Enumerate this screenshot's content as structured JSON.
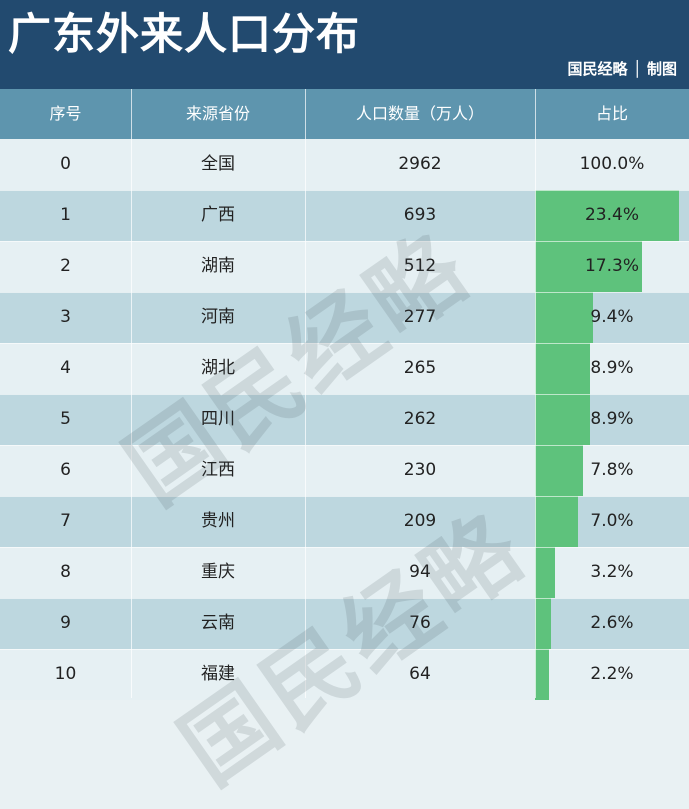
{
  "header": {
    "title": "广东外来人口分布",
    "credit": "国民经略 │ 制图",
    "bg": "#224a6f"
  },
  "chart_data": {
    "type": "table",
    "columns": [
      "序号",
      "来源省份",
      "人口数量（万人）",
      "占比"
    ],
    "rows": [
      {
        "index": "0",
        "province": "全国",
        "population": "2962",
        "share": "100.0%",
        "share_value": 100.0
      },
      {
        "index": "1",
        "province": "广西",
        "population": "693",
        "share": "23.4%",
        "share_value": 23.4
      },
      {
        "index": "2",
        "province": "湖南",
        "population": "512",
        "share": "17.3%",
        "share_value": 17.3
      },
      {
        "index": "3",
        "province": "河南",
        "population": "277",
        "share": "9.4%",
        "share_value": 9.4
      },
      {
        "index": "4",
        "province": "湖北",
        "population": "265",
        "share": "8.9%",
        "share_value": 8.9
      },
      {
        "index": "5",
        "province": "四川",
        "population": "262",
        "share": "8.9%",
        "share_value": 8.9
      },
      {
        "index": "6",
        "province": "江西",
        "population": "230",
        "share": "7.8%",
        "share_value": 7.8
      },
      {
        "index": "7",
        "province": "贵州",
        "population": "209",
        "share": "7.0%",
        "share_value": 7.0
      },
      {
        "index": "8",
        "province": "重庆",
        "population": "94",
        "share": "3.2%",
        "share_value": 3.2
      },
      {
        "index": "9",
        "province": "云南",
        "population": "76",
        "share": "2.6%",
        "share_value": 2.6
      },
      {
        "index": "10",
        "province": "福建",
        "population": "64",
        "share": "2.2%",
        "share_value": 2.2
      }
    ],
    "bar_scale_max": 25,
    "colors": {
      "bar": "#5ec27c",
      "header_row": "#5e95ae",
      "row_light": "#e6f0f3",
      "row_dark": "#bdd7df"
    }
  },
  "watermark": "国民经略"
}
